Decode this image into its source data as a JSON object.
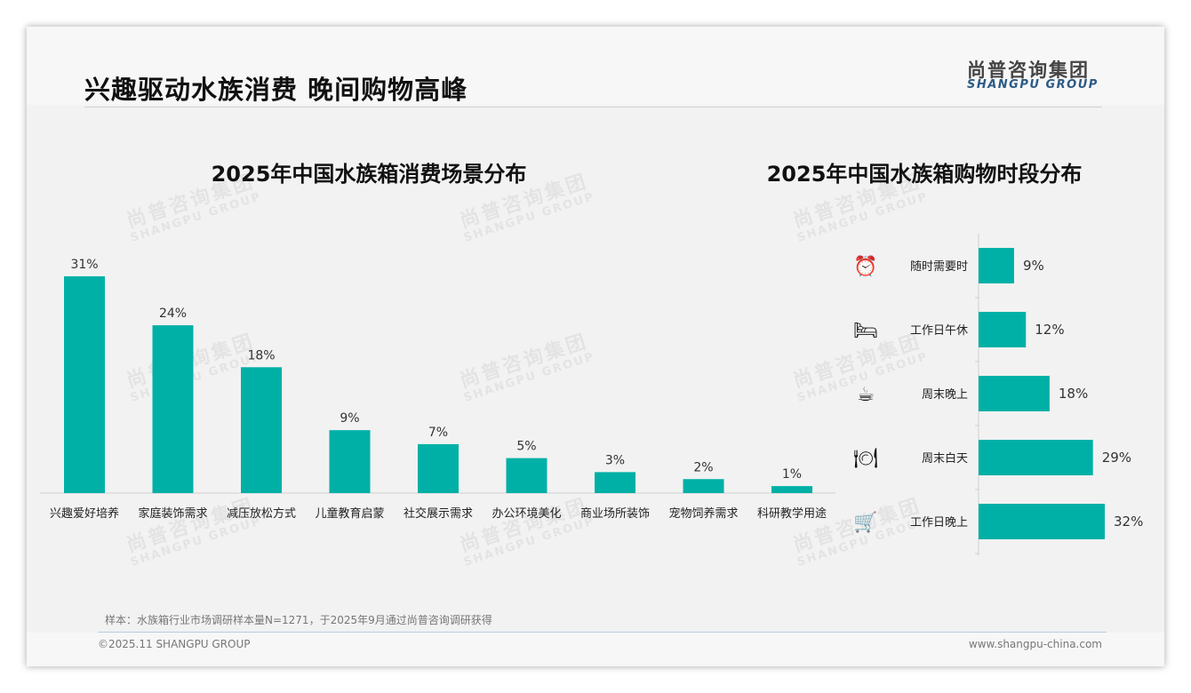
{
  "header": {
    "title": "兴趣驱动水族消费 晚间购物高峰",
    "logo_cn": "尚普咨询集团",
    "logo_en": "SHANGPU GROUP"
  },
  "footer": {
    "note": "样本：水族箱行业市场调研样本量N=1271，于2025年9月通过尚普咨询调研获得",
    "copyright": "©2025.11 SHANGPU GROUP",
    "url": "www.shangpu-china.com"
  },
  "colors": {
    "bar": "#00b0a6"
  },
  "chart_data": [
    {
      "type": "bar",
      "title": "2025年中国水族箱消费场景分布",
      "categories": [
        "兴趣爱好培养",
        "家庭装饰需求",
        "减压放松方式",
        "儿童教育启蒙",
        "社交展示需求",
        "办公环境美化",
        "商业场所装饰",
        "宠物饲养需求",
        "科研教学用途"
      ],
      "values": [
        31,
        24,
        18,
        9,
        7,
        5,
        3,
        2,
        1
      ],
      "labels": [
        "31%",
        "24%",
        "18%",
        "9%",
        "7%",
        "5%",
        "3%",
        "2%",
        "1%"
      ],
      "xlabel": "",
      "ylabel": "",
      "ylim": [
        0,
        31
      ]
    },
    {
      "type": "bar",
      "orientation": "horizontal",
      "title": "2025年中国水族箱购物时段分布",
      "categories": [
        "随时需要时",
        "工作日午休",
        "周末晚上",
        "周末白天",
        "工作日晚上"
      ],
      "icons": [
        "alarm-clock-icon",
        "bed-icon",
        "coffee-mug-icon",
        "plate-cutlery-icon",
        "shopping-cart-icon"
      ],
      "values": [
        9,
        12,
        18,
        29,
        32
      ],
      "labels": [
        "9%",
        "12%",
        "18%",
        "29%",
        "32%"
      ],
      "xlim": [
        0,
        32
      ]
    }
  ]
}
